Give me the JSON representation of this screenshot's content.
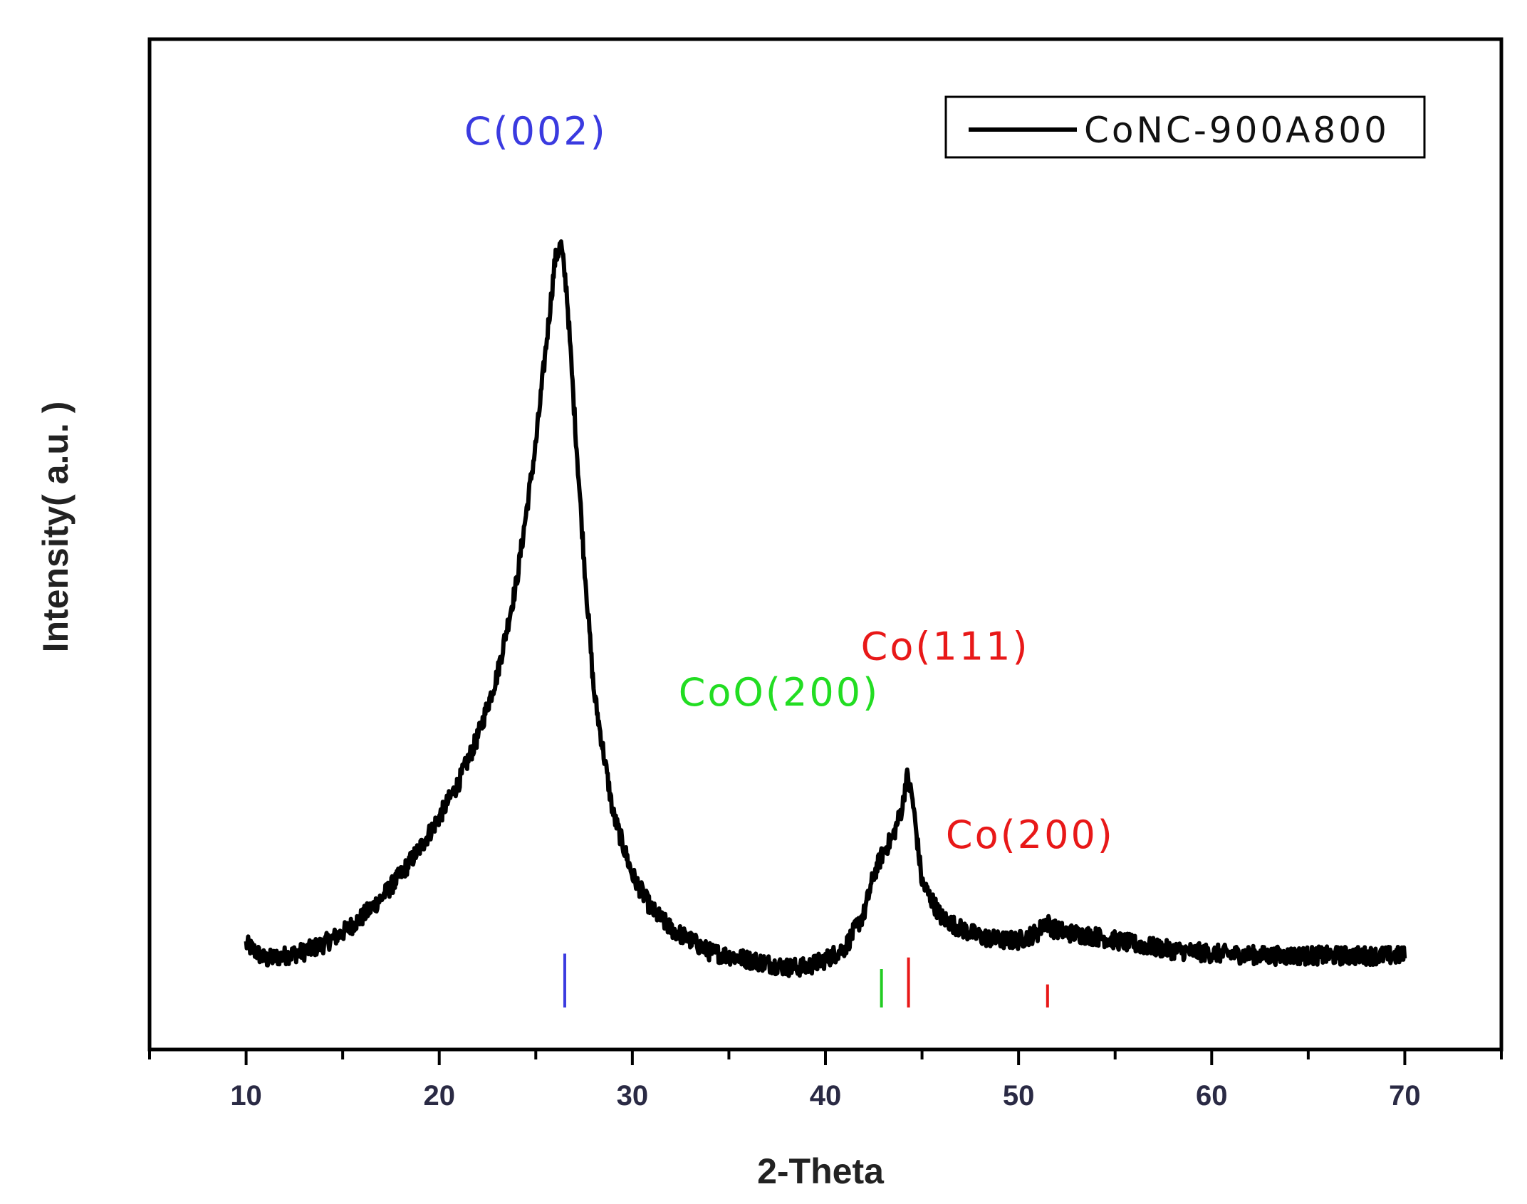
{
  "chart_data": {
    "type": "line",
    "xlabel": "2-Theta",
    "ylabel": "Intensity( a.u. )",
    "xlim": [
      5,
      75
    ],
    "xticks": [
      10,
      20,
      30,
      40,
      50,
      60,
      70
    ],
    "y_tick_labels": "none",
    "grid": false,
    "legend_position": "top-right",
    "series": [
      {
        "name": "CoNC-900A800",
        "color": "#000000",
        "x_range": [
          10,
          70
        ],
        "points": [
          [
            10,
            5
          ],
          [
            11,
            3
          ],
          [
            12,
            3.5
          ],
          [
            13,
            4
          ],
          [
            14,
            5
          ],
          [
            15,
            6.5
          ],
          [
            16,
            8.5
          ],
          [
            17,
            11
          ],
          [
            18,
            14
          ],
          [
            19,
            17.5
          ],
          [
            20,
            21.5
          ],
          [
            21,
            26
          ],
          [
            22,
            32
          ],
          [
            23,
            40
          ],
          [
            24,
            52
          ],
          [
            25,
            70
          ],
          [
            25.5,
            82
          ],
          [
            26.0,
            94
          ],
          [
            26.3,
            96
          ],
          [
            26.6,
            90
          ],
          [
            27.0,
            74
          ],
          [
            27.5,
            55
          ],
          [
            28,
            38
          ],
          [
            29,
            22
          ],
          [
            30,
            14
          ],
          [
            31,
            9.5
          ],
          [
            32,
            7
          ],
          [
            33,
            5.5
          ],
          [
            34,
            4
          ],
          [
            35,
            3.5
          ],
          [
            36,
            3
          ],
          [
            37,
            2.5
          ],
          [
            38,
            2
          ],
          [
            39,
            2
          ],
          [
            40,
            3
          ],
          [
            41,
            4.5
          ],
          [
            42,
            9
          ],
          [
            42.5,
            14
          ],
          [
            43,
            17
          ],
          [
            43.5,
            19
          ],
          [
            44.0,
            23
          ],
          [
            44.2,
            27
          ],
          [
            44.5,
            24
          ],
          [
            45,
            13
          ],
          [
            46,
            8.5
          ],
          [
            47,
            7
          ],
          [
            48,
            6
          ],
          [
            49,
            5.5
          ],
          [
            50,
            5.5
          ],
          [
            51,
            6.5
          ],
          [
            51.4,
            8
          ],
          [
            51.8,
            7
          ],
          [
            52.5,
            6.5
          ],
          [
            54,
            6
          ],
          [
            56,
            5
          ],
          [
            58,
            4.2
          ],
          [
            60,
            3.8
          ],
          [
            63,
            3.5
          ],
          [
            66,
            3.5
          ],
          [
            70,
            3.5
          ]
        ]
      }
    ],
    "reference_markers": [
      {
        "x": 26.5,
        "color": "#3a3ae0",
        "height": 7
      },
      {
        "x": 42.9,
        "color": "#22cc22",
        "height": 5
      },
      {
        "x": 44.3,
        "color": "#e81818",
        "height": 6.5
      },
      {
        "x": 51.5,
        "color": "#e81818",
        "height": 3
      }
    ],
    "annotations": [
      {
        "text": "C(002)",
        "x": 25.0,
        "y": 109,
        "color": "#3a3ae0"
      },
      {
        "text": "CoO(200)",
        "x": 37.6,
        "y": 36,
        "color": "#22dd22"
      },
      {
        "text": "Co(111)",
        "x": 46.2,
        "y": 42,
        "color": "#e81818"
      },
      {
        "text": "Co(200)",
        "x": 50.6,
        "y": 17.5,
        "color": "#e81818"
      }
    ]
  }
}
